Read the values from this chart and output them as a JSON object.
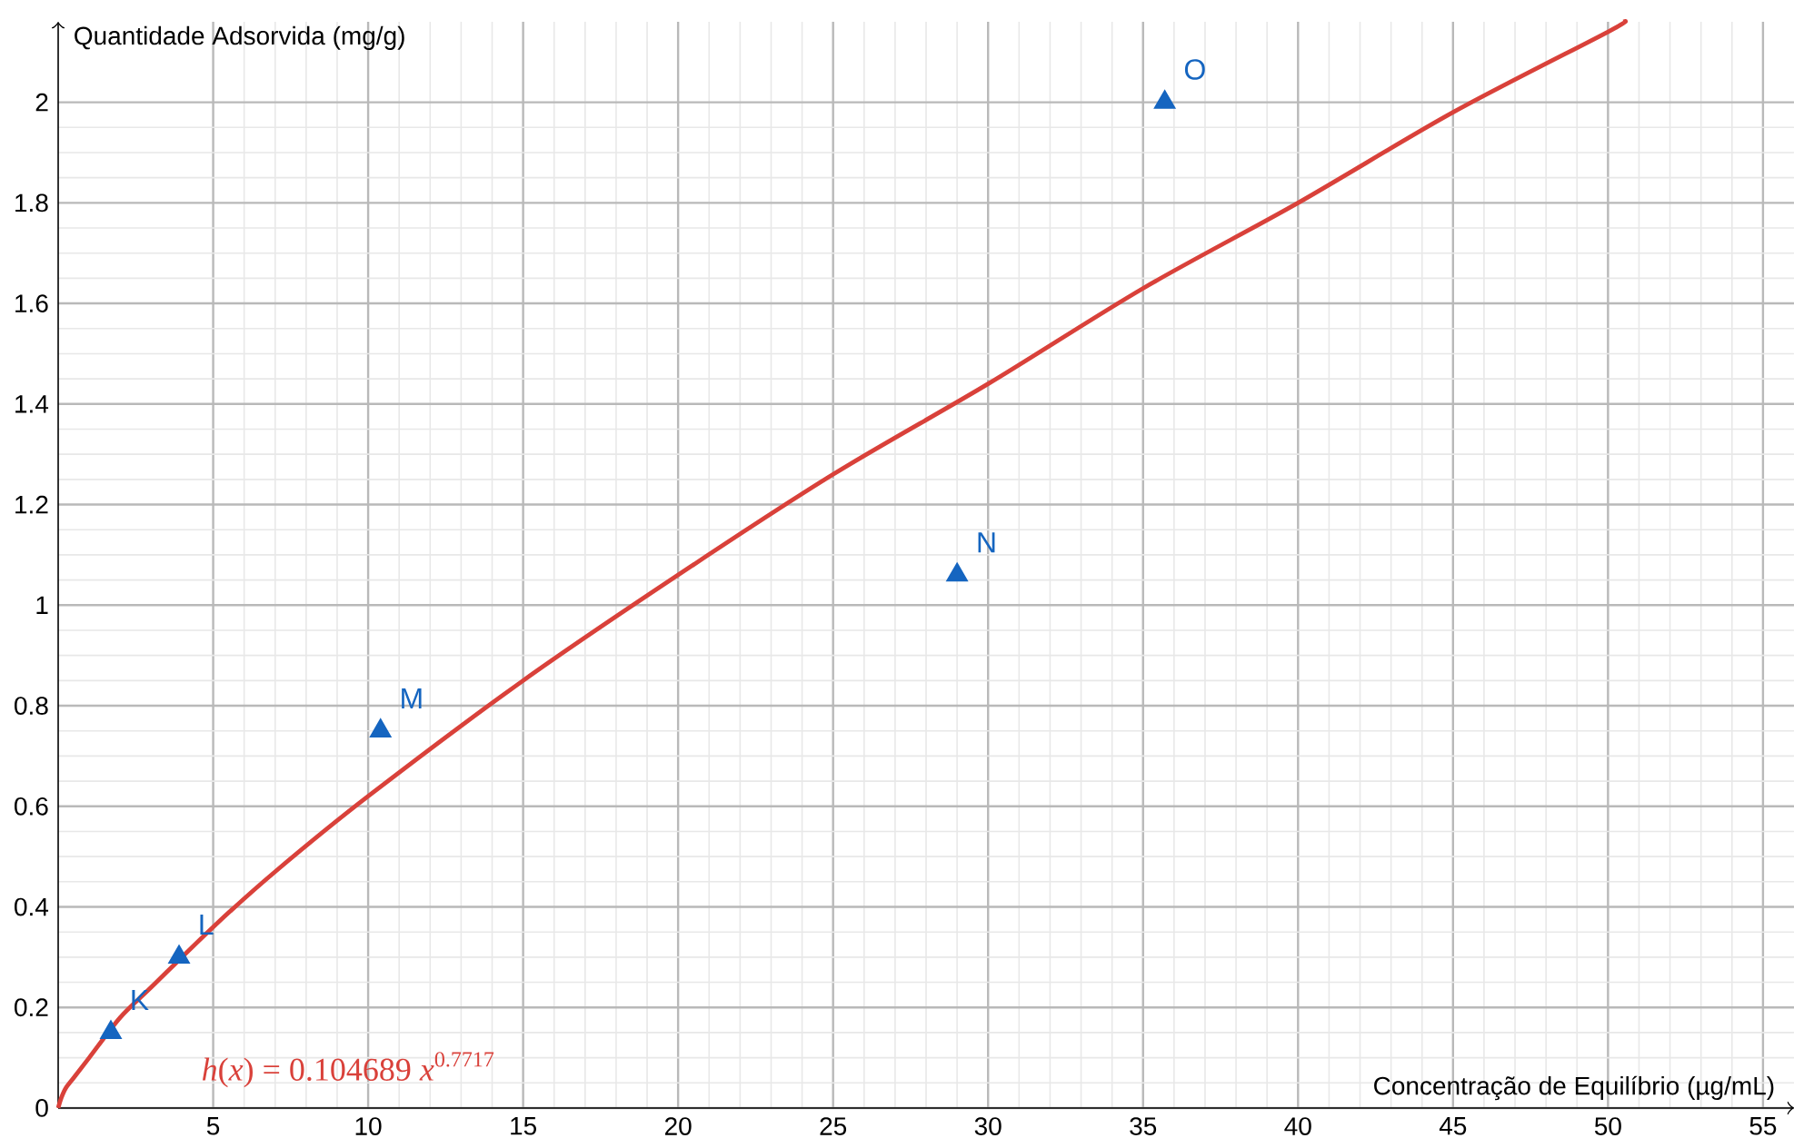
{
  "chart_data": {
    "type": "scatter",
    "xlabel": "Concentração de Equilíbrio (µg/mL)",
    "ylabel": "Quantidade Adsorvida (mg/g)",
    "xlim": [
      0,
      56
    ],
    "ylim": [
      0,
      2.16
    ],
    "xticks": [
      5,
      10,
      15,
      20,
      25,
      30,
      35,
      40,
      45,
      50,
      55
    ],
    "yticks": [
      0,
      0.2,
      0.4,
      0.6,
      0.8,
      1,
      1.2,
      1.4,
      1.6,
      1.8,
      2
    ],
    "grid": true,
    "series": [
      {
        "marker": "triangle",
        "color": "#1565c0",
        "x": [
          1.7,
          3.9,
          10.4,
          29.0,
          35.7
        ],
        "values": [
          0.15,
          0.3,
          0.75,
          1.06,
          2.0
        ]
      },
      {
        "type": "line",
        "color": "#d9413a",
        "x": [
          0,
          0.1,
          0.25,
          0.5,
          1,
          2,
          3,
          5,
          7,
          10,
          15,
          20,
          25,
          30,
          35,
          40,
          45,
          50,
          50.5
        ],
        "values": [
          0,
          0.02,
          0.04,
          0.06,
          0.1,
          0.18,
          0.24,
          0.36,
          0.47,
          0.62,
          0.85,
          1.06,
          1.26,
          1.44,
          1.63,
          1.8,
          1.98,
          2.14,
          2.16
        ]
      }
    ],
    "annotations": [
      {
        "text": "K",
        "x": 1.7,
        "y": 0.15
      },
      {
        "text": "L",
        "x": 3.9,
        "y": 0.3
      },
      {
        "text": "M",
        "x": 10.4,
        "y": 0.75
      },
      {
        "text": "N",
        "x": 29.0,
        "y": 1.06
      },
      {
        "text": "O",
        "x": 35.7,
        "y": 2.0
      },
      "*h*(*x*) = 0.104689 *x*$^{0.7717}$"
    ]
  }
}
